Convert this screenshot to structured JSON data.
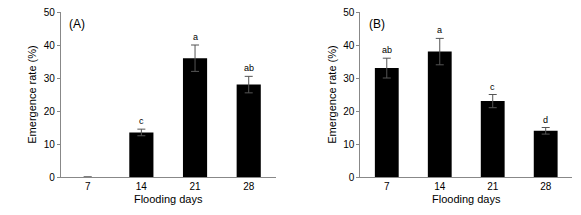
{
  "chart_data": [
    {
      "type": "bar",
      "title": "(A)",
      "x_label": "Flooding days",
      "y_label": "Emergence rate (%)",
      "categories": [
        "7",
        "14",
        "21",
        "28"
      ],
      "values": [
        0,
        13.5,
        36,
        28
      ],
      "errors": [
        0,
        1,
        4,
        2.5
      ],
      "annotations": [
        {
          "category": "14",
          "text": "c"
        },
        {
          "category": "21",
          "text": "a"
        },
        {
          "category": "28",
          "text": "ab"
        }
      ],
      "color": "#000000",
      "ylim": [
        0,
        50
      ],
      "yticks": [
        0,
        10,
        20,
        30,
        40,
        50
      ],
      "grid": false
    },
    {
      "type": "bar",
      "title": "(B)",
      "x_label": "Flooding days",
      "y_label": "Emergence rate (%)",
      "categories": [
        "7",
        "14",
        "21",
        "28"
      ],
      "values": [
        33,
        38,
        23,
        14
      ],
      "errors": [
        3,
        4,
        2,
        1
      ],
      "annotations": [
        {
          "category": "7",
          "text": "ab"
        },
        {
          "category": "14",
          "text": "a"
        },
        {
          "category": "21",
          "text": "c"
        },
        {
          "category": "28",
          "text": "d"
        }
      ],
      "color": "#000000",
      "ylim": [
        0,
        50
      ],
      "yticks": [
        0,
        10,
        20,
        30,
        40,
        50
      ],
      "grid": false
    }
  ]
}
